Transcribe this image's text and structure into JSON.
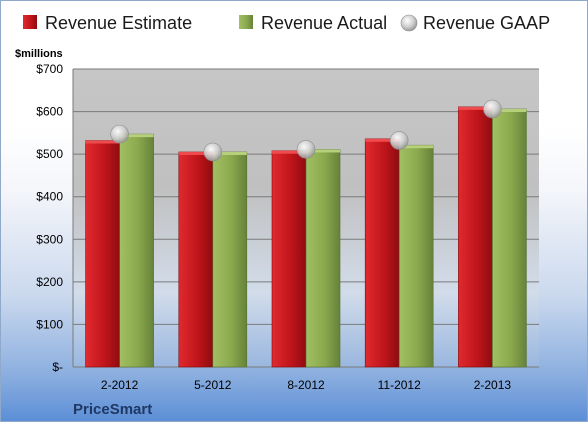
{
  "chart_data": {
    "type": "bar",
    "title": "",
    "ylabel": "$millions",
    "xlabel": "",
    "company": "PriceSmart",
    "categories": [
      "2-2012",
      "5-2012",
      "8-2012",
      "11-2012",
      "2-2013"
    ],
    "series": [
      {
        "name": "Revenue Estimate",
        "kind": "bar",
        "color": "#c0151b",
        "values": [
          532,
          505,
          508,
          536,
          611
        ]
      },
      {
        "name": "Revenue Actual",
        "kind": "bar",
        "color": "#8aa84c",
        "values": [
          547,
          505,
          511,
          521,
          606
        ]
      },
      {
        "name": "Revenue GAAP",
        "kind": "marker",
        "color": "#c8c8c8",
        "values": [
          547,
          505,
          511,
          532,
          606
        ]
      }
    ],
    "ylim": [
      0,
      700
    ],
    "yticks": [
      0,
      100,
      200,
      300,
      400,
      500,
      600,
      700
    ],
    "ytick_labels": [
      "$-",
      "$100",
      "$200",
      "$300",
      "$400",
      "$500",
      "$600",
      "$700"
    ],
    "grid": true,
    "legend_position": "top"
  }
}
